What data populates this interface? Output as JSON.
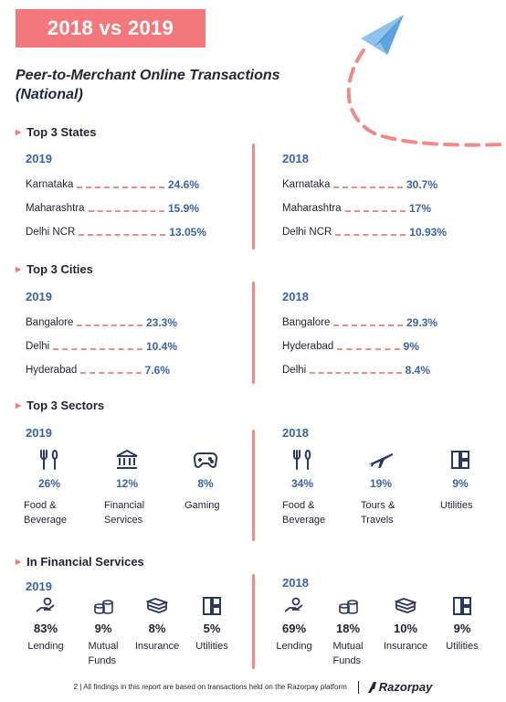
{
  "banner": "2018 vs 2019",
  "title": "Peer-to-Merchant Online Transactions (National)",
  "sections": {
    "states": {
      "heading": "Top 3 States",
      "left": {
        "year": "2019",
        "rows": [
          {
            "name": "Karnataka",
            "value": "24.6%"
          },
          {
            "name": "Maharashtra",
            "value": "15.9%"
          },
          {
            "name": "Delhi NCR",
            "value": "13.05%"
          }
        ]
      },
      "right": {
        "year": "2018",
        "rows": [
          {
            "name": "Karnataka",
            "value": "30.7%"
          },
          {
            "name": "Maharashtra",
            "value": "17%"
          },
          {
            "name": "Delhi NCR",
            "value": "10.93%"
          }
        ]
      }
    },
    "cities": {
      "heading": "Top 3 Cities",
      "left": {
        "year": "2019",
        "rows": [
          {
            "name": "Bangalore",
            "value": "23.3%"
          },
          {
            "name": "Delhi",
            "value": "10.4%"
          },
          {
            "name": "Hyderabad",
            "value": "7.6%"
          }
        ]
      },
      "right": {
        "year": "2018",
        "rows": [
          {
            "name": "Bangalore",
            "value": "29.3%"
          },
          {
            "name": "Hyderabad",
            "value": "9%"
          },
          {
            "name": "Delhi",
            "value": "8.4%"
          }
        ]
      }
    },
    "sectors": {
      "heading": "Top 3 Sectors",
      "left": {
        "year": "2019",
        "items": [
          {
            "icon": "fork-knife-icon",
            "value": "26%",
            "label1": "Food &",
            "label2": "Beverage"
          },
          {
            "icon": "bank-icon",
            "value": "12%",
            "label1": "Financial",
            "label2": "Services"
          },
          {
            "icon": "gamepad-icon",
            "value": "8%",
            "label1": "Gaming",
            "label2": ""
          }
        ]
      },
      "right": {
        "year": "2018",
        "items": [
          {
            "icon": "fork-knife-icon",
            "value": "34%",
            "label1": "Food &",
            "label2": "Beverage"
          },
          {
            "icon": "airplane-icon",
            "value": "19%",
            "label1": "Tours &",
            "label2": "Travels"
          },
          {
            "icon": "utilities-icon",
            "value": "9%",
            "label1": "Utilities",
            "label2": ""
          }
        ]
      }
    },
    "financial": {
      "heading": "In Financial Services",
      "left": {
        "year": "2019",
        "items": [
          {
            "icon": "lending-hand-icon",
            "value": "83%",
            "label1": "Lending",
            "label2": ""
          },
          {
            "icon": "coins-icon",
            "value": "9%",
            "label1": "Mutual",
            "label2": "Funds"
          },
          {
            "icon": "cash-stack-icon",
            "value": "8%",
            "label1": "Insurance",
            "label2": ""
          },
          {
            "icon": "utilities-icon",
            "value": "5%",
            "label1": "Utilities",
            "label2": ""
          }
        ]
      },
      "right": {
        "year": "2018",
        "items": [
          {
            "icon": "lending-hand-icon",
            "value": "69%",
            "label1": "Lending",
            "label2": ""
          },
          {
            "icon": "coins-icon",
            "value": "18%",
            "label1": "Mutual",
            "label2": "Funds"
          },
          {
            "icon": "cash-stack-icon",
            "value": "10%",
            "label1": "Insurance",
            "label2": ""
          },
          {
            "icon": "utilities-icon",
            "value": "9%",
            "label1": "Utilities",
            "label2": ""
          }
        ]
      }
    }
  },
  "footer": {
    "text": "2 | All findings in this report are based on transactions held on the Razorpay platform",
    "brand": "Razorpay"
  },
  "colors": {
    "accent": "#f4777c",
    "value_blue": "#3b64a6",
    "text": "#1f2233",
    "plane": "#8fc3ee"
  }
}
